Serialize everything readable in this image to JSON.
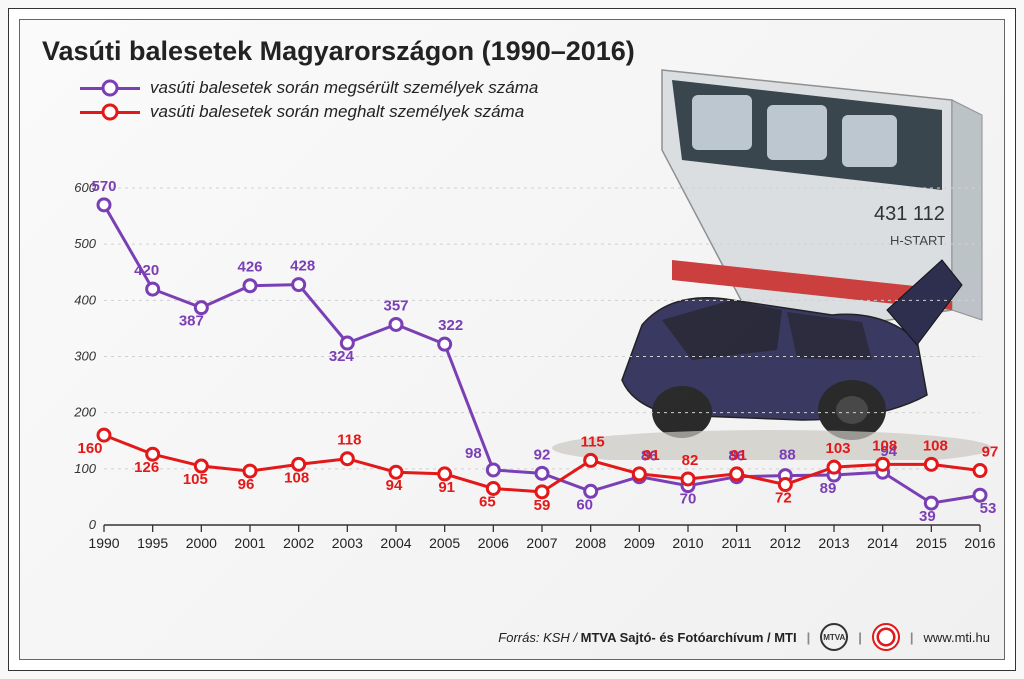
{
  "title": "Vasúti balesetek Magyarországon (1990–2016)",
  "legend": {
    "series1": "vasúti balesetek során megsérült személyek száma",
    "series2": "vasúti balesetek során meghalt személyek száma"
  },
  "chart": {
    "type": "line",
    "background_color": "#fafafa",
    "grid_color": "#d0d0d0",
    "axis_color": "#333333",
    "x_labels": [
      "1990",
      "1995",
      "2000",
      "2001",
      "2002",
      "2003",
      "2004",
      "2005",
      "2006",
      "2007",
      "2008",
      "2009",
      "2010",
      "2011",
      "2012",
      "2013",
      "2014",
      "2015",
      "2016"
    ],
    "ylim": [
      0,
      600
    ],
    "ytick_step": 100,
    "yticks": [
      0,
      100,
      200,
      300,
      400,
      500,
      600
    ],
    "x_label_fontsize": 14,
    "y_label_fontsize": 13,
    "data_label_fontsize": 15,
    "line_width": 3,
    "marker_radius": 6,
    "marker_fill": "#ffffff",
    "series": [
      {
        "name": "injured",
        "color": "#7b3fb5",
        "values": [
          570,
          420,
          387,
          426,
          428,
          324,
          357,
          322,
          98,
          92,
          60,
          86,
          70,
          86,
          88,
          89,
          94,
          39,
          53
        ],
        "label_offsets": [
          {
            "dx": 0,
            "dy": -14
          },
          {
            "dx": -6,
            "dy": -14
          },
          {
            "dx": -10,
            "dy": 18
          },
          {
            "dx": 0,
            "dy": -14
          },
          {
            "dx": 4,
            "dy": -14
          },
          {
            "dx": -6,
            "dy": 18
          },
          {
            "dx": 0,
            "dy": -14
          },
          {
            "dx": 6,
            "dy": -14
          },
          {
            "dx": -20,
            "dy": -12
          },
          {
            "dx": 0,
            "dy": -14
          },
          {
            "dx": -6,
            "dy": 18
          },
          {
            "dx": 10,
            "dy": -16
          },
          {
            "dx": 0,
            "dy": 18
          },
          {
            "dx": 0,
            "dy": -16
          },
          {
            "dx": 2,
            "dy": -16
          },
          {
            "dx": -6,
            "dy": 18
          },
          {
            "dx": 6,
            "dy": -16
          },
          {
            "dx": -4,
            "dy": 18
          },
          {
            "dx": 8,
            "dy": 18
          }
        ]
      },
      {
        "name": "deaths",
        "color": "#e31818",
        "values": [
          160,
          126,
          105,
          96,
          108,
          118,
          94,
          91,
          65,
          59,
          115,
          91,
          82,
          91,
          72,
          103,
          108,
          108,
          97
        ],
        "label_offsets": [
          {
            "dx": -14,
            "dy": 18
          },
          {
            "dx": -6,
            "dy": 18
          },
          {
            "dx": -6,
            "dy": 18
          },
          {
            "dx": -4,
            "dy": 18
          },
          {
            "dx": -2,
            "dy": 18
          },
          {
            "dx": 2,
            "dy": -14
          },
          {
            "dx": -2,
            "dy": 18
          },
          {
            "dx": 2,
            "dy": 18
          },
          {
            "dx": -6,
            "dy": 18
          },
          {
            "dx": 0,
            "dy": 18
          },
          {
            "dx": 2,
            "dy": -14
          },
          {
            "dx": 12,
            "dy": -14
          },
          {
            "dx": 2,
            "dy": -14
          },
          {
            "dx": 2,
            "dy": -14
          },
          {
            "dx": -2,
            "dy": 18
          },
          {
            "dx": 4,
            "dy": -14
          },
          {
            "dx": 2,
            "dy": -14
          },
          {
            "dx": 4,
            "dy": -14
          },
          {
            "dx": 10,
            "dy": -14
          }
        ]
      }
    ]
  },
  "background_image": {
    "train_number": "431 112",
    "train_label": "H-START"
  },
  "footer": {
    "source_prefix": "Forrás: KSH / ",
    "source_bold": "MTVA Sajtó- és Fotóarchívum / MTI",
    "logo1": "MTVA",
    "url": "www.mti.hu"
  }
}
